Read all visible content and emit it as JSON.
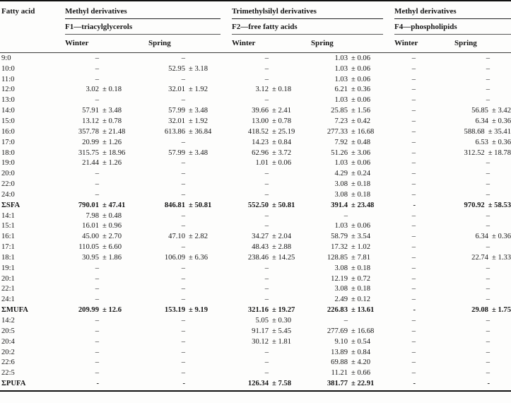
{
  "table": {
    "title_col": "Fatty acid",
    "groups": [
      {
        "derivative": "Methyl derivatives",
        "fraction": "F1—triacylglycerols",
        "seasons": [
          "Winter",
          "Spring"
        ]
      },
      {
        "derivative": "Trimethylsilyl derivatives",
        "fraction": "F2—free fatty acids",
        "seasons": [
          "Winter",
          "Spring"
        ]
      },
      {
        "derivative": "Methyl derivatives",
        "fraction": "F4—phospholipids",
        "seasons": [
          "Winter",
          "Spring"
        ]
      }
    ],
    "plus_minus_symbol": "±",
    "dash_symbol": "–",
    "sum_dash_symbol": "-",
    "rows": [
      {
        "fatty_acid": "9:0",
        "bold": false,
        "values": [
          [
            "–",
            ""
          ],
          [
            "–",
            ""
          ],
          [
            "–",
            ""
          ],
          [
            "1.03",
            "0.06"
          ],
          [
            "–",
            ""
          ],
          [
            "–",
            ""
          ]
        ]
      },
      {
        "fatty_acid": "10:0",
        "bold": false,
        "values": [
          [
            "–",
            ""
          ],
          [
            "52.95",
            "3.18"
          ],
          [
            "–",
            ""
          ],
          [
            "1.03",
            "0.06"
          ],
          [
            "–",
            ""
          ],
          [
            "–",
            ""
          ]
        ]
      },
      {
        "fatty_acid": "11:0",
        "bold": false,
        "values": [
          [
            "–",
            ""
          ],
          [
            "–",
            ""
          ],
          [
            "–",
            ""
          ],
          [
            "1.03",
            "0.06"
          ],
          [
            "–",
            ""
          ],
          [
            "–",
            ""
          ]
        ]
      },
      {
        "fatty_acid": "12:0",
        "bold": false,
        "values": [
          [
            "3.02",
            "0.18"
          ],
          [
            "32.01",
            "1.92"
          ],
          [
            "3.12",
            "0.18"
          ],
          [
            "6.21",
            "0.36"
          ],
          [
            "–",
            ""
          ],
          [
            "–",
            ""
          ]
        ]
      },
      {
        "fatty_acid": "13:0",
        "bold": false,
        "values": [
          [
            "–",
            ""
          ],
          [
            "–",
            ""
          ],
          [
            "–",
            ""
          ],
          [
            "1.03",
            "0.06"
          ],
          [
            "–",
            ""
          ],
          [
            "–",
            ""
          ]
        ]
      },
      {
        "fatty_acid": "14:0",
        "bold": false,
        "values": [
          [
            "57.91",
            "3.48"
          ],
          [
            "57.99",
            "3.48"
          ],
          [
            "39.66",
            "2.41"
          ],
          [
            "25.85",
            "1.56"
          ],
          [
            "–",
            ""
          ],
          [
            "56.85",
            "3.42"
          ]
        ]
      },
      {
        "fatty_acid": "15:0",
        "bold": false,
        "values": [
          [
            "13.12",
            "0.78"
          ],
          [
            "32.01",
            "1.92"
          ],
          [
            "13.00",
            "0.78"
          ],
          [
            "7.23",
            "0.42"
          ],
          [
            "–",
            ""
          ],
          [
            "6.34",
            "0.36"
          ]
        ]
      },
      {
        "fatty_acid": "16:0",
        "bold": false,
        "values": [
          [
            "357.78",
            "21.48"
          ],
          [
            "613.86",
            "36.84"
          ],
          [
            "418.52",
            "25.19"
          ],
          [
            "277.33",
            "16.68"
          ],
          [
            "–",
            ""
          ],
          [
            "588.68",
            "35.41"
          ]
        ]
      },
      {
        "fatty_acid": "17:0",
        "bold": false,
        "values": [
          [
            "20.99",
            "1.26"
          ],
          [
            "–",
            ""
          ],
          [
            "14.23",
            "0.84"
          ],
          [
            "7.92",
            "0.48"
          ],
          [
            "–",
            ""
          ],
          [
            "6.53",
            "0.36"
          ]
        ]
      },
      {
        "fatty_acid": "18:0",
        "bold": false,
        "values": [
          [
            "315.75",
            "18.96"
          ],
          [
            "57.99",
            "3.48"
          ],
          [
            "62.96",
            "3.72"
          ],
          [
            "51.26",
            "3.06"
          ],
          [
            "–",
            ""
          ],
          [
            "312.52",
            "18.78"
          ]
        ]
      },
      {
        "fatty_acid": "19:0",
        "bold": false,
        "values": [
          [
            "21.44",
            "1.26"
          ],
          [
            "–",
            ""
          ],
          [
            "1.01",
            "0.06"
          ],
          [
            "1.03",
            "0.06"
          ],
          [
            "–",
            ""
          ],
          [
            "–",
            ""
          ]
        ]
      },
      {
        "fatty_acid": "20:0",
        "bold": false,
        "values": [
          [
            "–",
            ""
          ],
          [
            "–",
            ""
          ],
          [
            "–",
            ""
          ],
          [
            "4.29",
            "0.24"
          ],
          [
            "–",
            ""
          ],
          [
            "–",
            ""
          ]
        ]
      },
      {
        "fatty_acid": "22:0",
        "bold": false,
        "values": [
          [
            "–",
            ""
          ],
          [
            "–",
            ""
          ],
          [
            "–",
            ""
          ],
          [
            "3.08",
            "0.18"
          ],
          [
            "–",
            ""
          ],
          [
            "–",
            ""
          ]
        ]
      },
      {
        "fatty_acid": "24:0",
        "bold": false,
        "values": [
          [
            "–",
            ""
          ],
          [
            "–",
            ""
          ],
          [
            "–",
            ""
          ],
          [
            "3.08",
            "0.18"
          ],
          [
            "–",
            ""
          ],
          [
            "–",
            ""
          ]
        ]
      },
      {
        "fatty_acid": "ΣSFA",
        "bold": true,
        "values": [
          [
            "790.01",
            "47.41"
          ],
          [
            "846.81",
            "50.81"
          ],
          [
            "552.50",
            "50.81"
          ],
          [
            "391.4",
            "23.48"
          ],
          [
            "-",
            ""
          ],
          [
            "970.92",
            "58.53"
          ]
        ]
      },
      {
        "fatty_acid": "14:1",
        "bold": false,
        "values": [
          [
            "7.98",
            "0.48"
          ],
          [
            "–",
            ""
          ],
          [
            "–",
            ""
          ],
          [
            "–",
            ""
          ],
          [
            "–",
            ""
          ],
          [
            "–",
            ""
          ]
        ]
      },
      {
        "fatty_acid": "15:1",
        "bold": false,
        "values": [
          [
            "16.01",
            "0.96"
          ],
          [
            "–",
            ""
          ],
          [
            "–",
            ""
          ],
          [
            "1.03",
            "0.06"
          ],
          [
            "–",
            ""
          ],
          [
            "–",
            ""
          ]
        ]
      },
      {
        "fatty_acid": "16:1",
        "bold": false,
        "values": [
          [
            "45.00",
            "2.70"
          ],
          [
            "47.10",
            "2.82"
          ],
          [
            "34.27",
            "2.04"
          ],
          [
            "58.79",
            "3.54"
          ],
          [
            "–",
            ""
          ],
          [
            "6.34",
            "0.36"
          ]
        ]
      },
      {
        "fatty_acid": "17:1",
        "bold": false,
        "values": [
          [
            "110.05",
            "6.60"
          ],
          [
            "–",
            ""
          ],
          [
            "48.43",
            "2.88"
          ],
          [
            "17.32",
            "1.02"
          ],
          [
            "–",
            ""
          ],
          [
            "–",
            ""
          ]
        ]
      },
      {
        "fatty_acid": "18:1",
        "bold": false,
        "values": [
          [
            "30.95",
            "1.86"
          ],
          [
            "106.09",
            "6.36"
          ],
          [
            "238.46",
            "14.25"
          ],
          [
            "128.85",
            "7.81"
          ],
          [
            "–",
            ""
          ],
          [
            "22.74",
            "1.33"
          ]
        ]
      },
      {
        "fatty_acid": "19:1",
        "bold": false,
        "values": [
          [
            "–",
            ""
          ],
          [
            "–",
            ""
          ],
          [
            "–",
            ""
          ],
          [
            "3.08",
            "0.18"
          ],
          [
            "–",
            ""
          ],
          [
            "–",
            ""
          ]
        ]
      },
      {
        "fatty_acid": "20:1",
        "bold": false,
        "values": [
          [
            "–",
            ""
          ],
          [
            "–",
            ""
          ],
          [
            "–",
            ""
          ],
          [
            "12.19",
            "0.72"
          ],
          [
            "–",
            ""
          ],
          [
            "–",
            ""
          ]
        ]
      },
      {
        "fatty_acid": "22:1",
        "bold": false,
        "values": [
          [
            "–",
            ""
          ],
          [
            "–",
            ""
          ],
          [
            "–",
            ""
          ],
          [
            "3.08",
            "0.18"
          ],
          [
            "–",
            ""
          ],
          [
            "–",
            ""
          ]
        ]
      },
      {
        "fatty_acid": "24:1",
        "bold": false,
        "values": [
          [
            "–",
            ""
          ],
          [
            "–",
            ""
          ],
          [
            "–",
            ""
          ],
          [
            "2.49",
            "0.12"
          ],
          [
            "–",
            ""
          ],
          [
            "–",
            ""
          ]
        ]
      },
      {
        "fatty_acid": "ΣMUFA",
        "bold": true,
        "values": [
          [
            "209.99",
            "12.6"
          ],
          [
            "153.19",
            "9.19"
          ],
          [
            "321.16",
            "19.27"
          ],
          [
            "226.83",
            "13.61"
          ],
          [
            "-",
            ""
          ],
          [
            "29.08",
            "1.75"
          ]
        ]
      },
      {
        "fatty_acid": "14:2",
        "bold": false,
        "values": [
          [
            "–",
            ""
          ],
          [
            "–",
            ""
          ],
          [
            "5.05",
            "0.30"
          ],
          [
            "–",
            ""
          ],
          [
            "–",
            ""
          ],
          [
            "–",
            ""
          ]
        ]
      },
      {
        "fatty_acid": "20:5",
        "bold": false,
        "values": [
          [
            "–",
            ""
          ],
          [
            "–",
            ""
          ],
          [
            "91.17",
            "5.45"
          ],
          [
            "277.69",
            "16.68"
          ],
          [
            "–",
            ""
          ],
          [
            "–",
            ""
          ]
        ]
      },
      {
        "fatty_acid": "20:4",
        "bold": false,
        "values": [
          [
            "–",
            ""
          ],
          [
            "–",
            ""
          ],
          [
            "30.12",
            "1.81"
          ],
          [
            "9.10",
            "0.54"
          ],
          [
            "–",
            ""
          ],
          [
            "–",
            ""
          ]
        ]
      },
      {
        "fatty_acid": "20:2",
        "bold": false,
        "values": [
          [
            "–",
            ""
          ],
          [
            "–",
            ""
          ],
          [
            "–",
            ""
          ],
          [
            "13.89",
            "0.84"
          ],
          [
            "–",
            ""
          ],
          [
            "–",
            ""
          ]
        ]
      },
      {
        "fatty_acid": "22:6",
        "bold": false,
        "values": [
          [
            "–",
            ""
          ],
          [
            "–",
            ""
          ],
          [
            "–",
            ""
          ],
          [
            "69.88",
            "4.20"
          ],
          [
            "–",
            ""
          ],
          [
            "–",
            ""
          ]
        ]
      },
      {
        "fatty_acid": "22:5",
        "bold": false,
        "values": [
          [
            "–",
            ""
          ],
          [
            "–",
            ""
          ],
          [
            "–",
            ""
          ],
          [
            "11.21",
            "0.66"
          ],
          [
            "–",
            ""
          ],
          [
            "–",
            ""
          ]
        ]
      },
      {
        "fatty_acid": "ΣPUFA",
        "bold": true,
        "values": [
          [
            "-",
            ""
          ],
          [
            "-",
            ""
          ],
          [
            "126.34",
            "7.58"
          ],
          [
            "381.77",
            "22.91"
          ],
          [
            "-",
            ""
          ],
          [
            "-",
            ""
          ]
        ]
      }
    ]
  }
}
